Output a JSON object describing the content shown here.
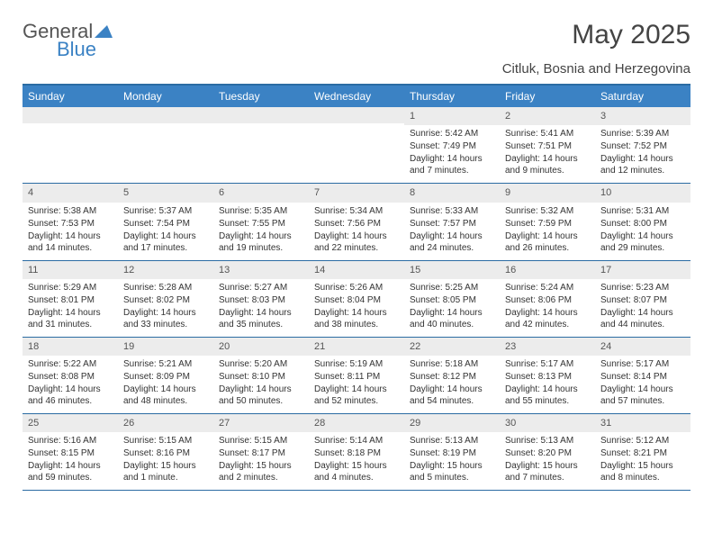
{
  "logo": {
    "text1": "General",
    "text2": "Blue"
  },
  "title": "May 2025",
  "subtitle": "Citluk, Bosnia and Herzegovina",
  "colors": {
    "header_bg": "#3b82c4",
    "header_text": "#ffffff",
    "border": "#2b6ca3",
    "daynum_bg": "#ececec",
    "text": "#333333"
  },
  "day_names": [
    "Sunday",
    "Monday",
    "Tuesday",
    "Wednesday",
    "Thursday",
    "Friday",
    "Saturday"
  ],
  "weeks": [
    [
      null,
      null,
      null,
      null,
      {
        "n": "1",
        "sr": "5:42 AM",
        "ss": "7:49 PM",
        "dl": "14 hours and 7 minutes."
      },
      {
        "n": "2",
        "sr": "5:41 AM",
        "ss": "7:51 PM",
        "dl": "14 hours and 9 minutes."
      },
      {
        "n": "3",
        "sr": "5:39 AM",
        "ss": "7:52 PM",
        "dl": "14 hours and 12 minutes."
      }
    ],
    [
      {
        "n": "4",
        "sr": "5:38 AM",
        "ss": "7:53 PM",
        "dl": "14 hours and 14 minutes."
      },
      {
        "n": "5",
        "sr": "5:37 AM",
        "ss": "7:54 PM",
        "dl": "14 hours and 17 minutes."
      },
      {
        "n": "6",
        "sr": "5:35 AM",
        "ss": "7:55 PM",
        "dl": "14 hours and 19 minutes."
      },
      {
        "n": "7",
        "sr": "5:34 AM",
        "ss": "7:56 PM",
        "dl": "14 hours and 22 minutes."
      },
      {
        "n": "8",
        "sr": "5:33 AM",
        "ss": "7:57 PM",
        "dl": "14 hours and 24 minutes."
      },
      {
        "n": "9",
        "sr": "5:32 AM",
        "ss": "7:59 PM",
        "dl": "14 hours and 26 minutes."
      },
      {
        "n": "10",
        "sr": "5:31 AM",
        "ss": "8:00 PM",
        "dl": "14 hours and 29 minutes."
      }
    ],
    [
      {
        "n": "11",
        "sr": "5:29 AM",
        "ss": "8:01 PM",
        "dl": "14 hours and 31 minutes."
      },
      {
        "n": "12",
        "sr": "5:28 AM",
        "ss": "8:02 PM",
        "dl": "14 hours and 33 minutes."
      },
      {
        "n": "13",
        "sr": "5:27 AM",
        "ss": "8:03 PM",
        "dl": "14 hours and 35 minutes."
      },
      {
        "n": "14",
        "sr": "5:26 AM",
        "ss": "8:04 PM",
        "dl": "14 hours and 38 minutes."
      },
      {
        "n": "15",
        "sr": "5:25 AM",
        "ss": "8:05 PM",
        "dl": "14 hours and 40 minutes."
      },
      {
        "n": "16",
        "sr": "5:24 AM",
        "ss": "8:06 PM",
        "dl": "14 hours and 42 minutes."
      },
      {
        "n": "17",
        "sr": "5:23 AM",
        "ss": "8:07 PM",
        "dl": "14 hours and 44 minutes."
      }
    ],
    [
      {
        "n": "18",
        "sr": "5:22 AM",
        "ss": "8:08 PM",
        "dl": "14 hours and 46 minutes."
      },
      {
        "n": "19",
        "sr": "5:21 AM",
        "ss": "8:09 PM",
        "dl": "14 hours and 48 minutes."
      },
      {
        "n": "20",
        "sr": "5:20 AM",
        "ss": "8:10 PM",
        "dl": "14 hours and 50 minutes."
      },
      {
        "n": "21",
        "sr": "5:19 AM",
        "ss": "8:11 PM",
        "dl": "14 hours and 52 minutes."
      },
      {
        "n": "22",
        "sr": "5:18 AM",
        "ss": "8:12 PM",
        "dl": "14 hours and 54 minutes."
      },
      {
        "n": "23",
        "sr": "5:17 AM",
        "ss": "8:13 PM",
        "dl": "14 hours and 55 minutes."
      },
      {
        "n": "24",
        "sr": "5:17 AM",
        "ss": "8:14 PM",
        "dl": "14 hours and 57 minutes."
      }
    ],
    [
      {
        "n": "25",
        "sr": "5:16 AM",
        "ss": "8:15 PM",
        "dl": "14 hours and 59 minutes."
      },
      {
        "n": "26",
        "sr": "5:15 AM",
        "ss": "8:16 PM",
        "dl": "15 hours and 1 minute."
      },
      {
        "n": "27",
        "sr": "5:15 AM",
        "ss": "8:17 PM",
        "dl": "15 hours and 2 minutes."
      },
      {
        "n": "28",
        "sr": "5:14 AM",
        "ss": "8:18 PM",
        "dl": "15 hours and 4 minutes."
      },
      {
        "n": "29",
        "sr": "5:13 AM",
        "ss": "8:19 PM",
        "dl": "15 hours and 5 minutes."
      },
      {
        "n": "30",
        "sr": "5:13 AM",
        "ss": "8:20 PM",
        "dl": "15 hours and 7 minutes."
      },
      {
        "n": "31",
        "sr": "5:12 AM",
        "ss": "8:21 PM",
        "dl": "15 hours and 8 minutes."
      }
    ]
  ],
  "labels": {
    "sunrise": "Sunrise:",
    "sunset": "Sunset:",
    "daylight": "Daylight:"
  }
}
